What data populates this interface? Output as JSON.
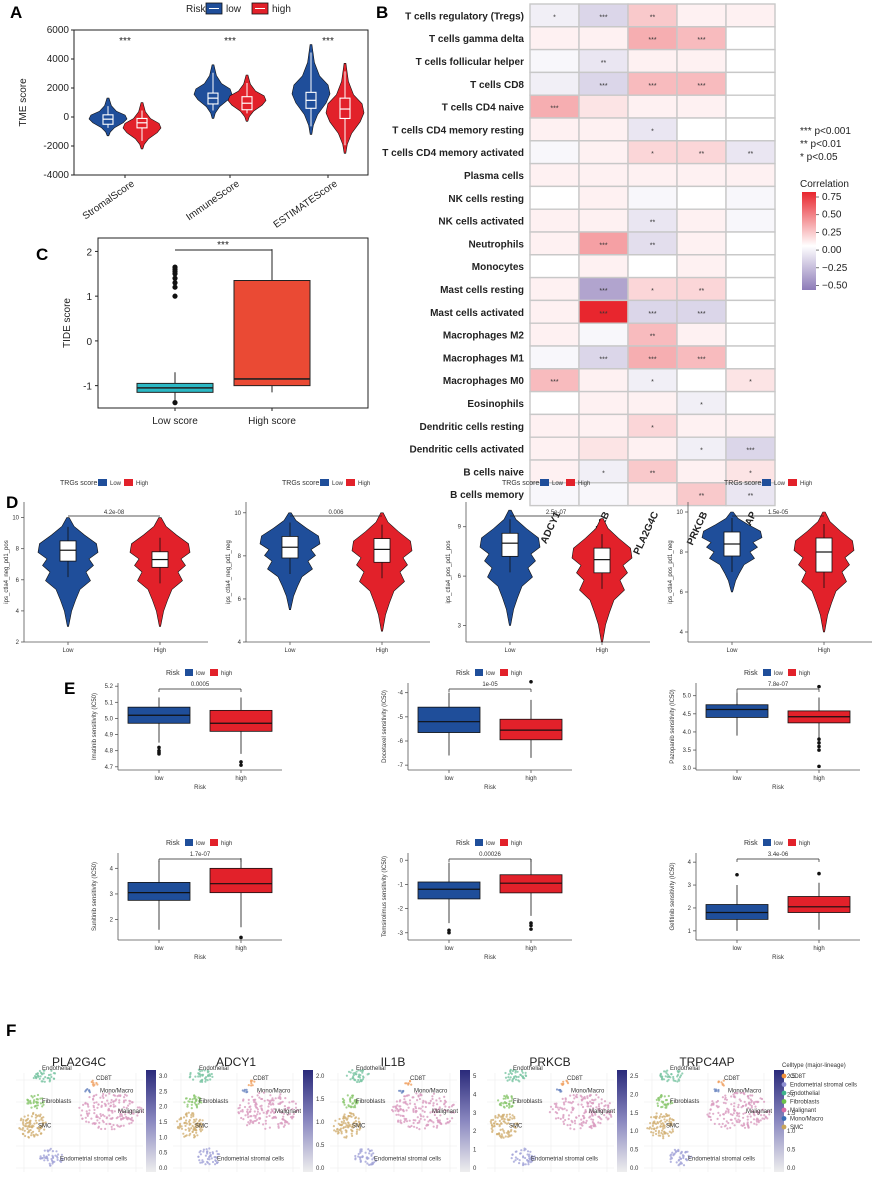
{
  "panel_labels": [
    "A",
    "B",
    "C",
    "D",
    "E",
    "F"
  ],
  "colors": {
    "low": "#1f4e9a",
    "high": "#e2212a",
    "low_light": "#2f5fb0",
    "high_light": "#ee3a3a",
    "box_cyan": "#2bb8c4",
    "box_red": "#ea4a34",
    "heat_pos": "#e8262e",
    "heat_neg": "#8d7bb8"
  },
  "chart_data": [
    {
      "id": "A",
      "type": "violin",
      "legend_title": "Risk",
      "legend": [
        "low",
        "high"
      ],
      "ylabel": "TME score",
      "ylim": [
        -4000,
        6000
      ],
      "yticks": [
        -4000,
        -2000,
        0,
        2000,
        4000,
        6000
      ],
      "categories": [
        "StromalScore",
        "ImmuneScore",
        "ESTIMATEScore"
      ],
      "significance": [
        "***",
        "***",
        "***"
      ],
      "series": [
        {
          "name": "low",
          "medians": [
            -150,
            1300,
            1150
          ],
          "q1": [
            -500,
            900,
            600
          ],
          "q3": [
            150,
            1650,
            1700
          ],
          "min": [
            -1300,
            -100,
            -1200
          ],
          "max": [
            1300,
            3600,
            5000
          ]
        },
        {
          "name": "high",
          "medians": [
            -400,
            950,
            550
          ],
          "q1": [
            -750,
            500,
            -100
          ],
          "q3": [
            -100,
            1400,
            1300
          ],
          "min": [
            -2200,
            -300,
            -2500
          ],
          "max": [
            1000,
            2900,
            3700
          ]
        }
      ]
    },
    {
      "id": "B",
      "type": "heatmap",
      "rows": [
        "T cells regulatory (Tregs)",
        "T cells gamma delta",
        "T cells follicular helper",
        "T cells CD8",
        "T cells CD4 naive",
        "T cells CD4 memory resting",
        "T cells CD4 memory activated",
        "Plasma cells",
        "NK cells resting",
        "NK cells activated",
        "Neutrophils",
        "Monocytes",
        "Mast cells resting",
        "Mast cells activated",
        "Macrophages M2",
        "Macrophages M1",
        "Macrophages M0",
        "Eosinophils",
        "Dendritic cells resting",
        "Dendritic cells activated",
        "B cells naive",
        "B cells memory"
      ],
      "columns": [
        "ADCY1",
        "IL1B",
        "PLA2G4C",
        "PRKCB",
        "TRPC4AP"
      ],
      "values": [
        [
          -0.1,
          -0.25,
          0.2,
          0.05,
          0.05
        ],
        [
          0.05,
          0.05,
          0.3,
          0.25,
          0.0
        ],
        [
          -0.05,
          -0.15,
          0.05,
          0.05,
          0.0
        ],
        [
          -0.1,
          -0.25,
          0.25,
          0.25,
          0.0
        ],
        [
          0.3,
          0.1,
          0.05,
          0.05,
          0.0
        ],
        [
          0.05,
          0.05,
          -0.15,
          0.0,
          0.0
        ],
        [
          -0.05,
          0.05,
          0.15,
          0.15,
          -0.15
        ],
        [
          0.05,
          0.05,
          0.05,
          0.05,
          0.05
        ],
        [
          0.0,
          0.05,
          -0.05,
          0.0,
          -0.05
        ],
        [
          0.05,
          0.05,
          -0.15,
          0.05,
          -0.05
        ],
        [
          0.05,
          0.35,
          -0.2,
          0.05,
          0.0
        ],
        [
          0.0,
          0.05,
          0.0,
          0.05,
          0.0
        ],
        [
          0.05,
          -0.55,
          0.15,
          0.15,
          0.0
        ],
        [
          0.05,
          0.8,
          -0.25,
          -0.25,
          0.0
        ],
        [
          0.05,
          -0.05,
          0.25,
          0.05,
          0.0
        ],
        [
          -0.05,
          -0.25,
          0.3,
          0.25,
          0.0
        ],
        [
          0.25,
          0.05,
          -0.1,
          0.0,
          0.1
        ],
        [
          0.0,
          0.05,
          0.05,
          -0.1,
          0.0
        ],
        [
          0.05,
          0.05,
          0.15,
          0.05,
          0.05
        ],
        [
          0.05,
          0.1,
          0.05,
          -0.1,
          -0.25
        ],
        [
          0.05,
          -0.1,
          0.2,
          0.05,
          0.1
        ],
        [
          -0.05,
          -0.05,
          0.05,
          0.2,
          -0.15
        ]
      ],
      "stars": [
        [
          "*",
          "***",
          "**",
          "",
          ""
        ],
        [
          "",
          "",
          "***",
          "***",
          ""
        ],
        [
          "",
          "**",
          "",
          "",
          ""
        ],
        [
          "",
          "***",
          "***",
          "***",
          ""
        ],
        [
          "***",
          "",
          "",
          "",
          ""
        ],
        [
          "",
          "",
          "*",
          "",
          ""
        ],
        [
          "",
          "",
          "*",
          "**",
          "**"
        ],
        [
          "",
          "",
          "",
          "",
          ""
        ],
        [
          "",
          "",
          "",
          "",
          ""
        ],
        [
          "",
          "",
          "**",
          "",
          ""
        ],
        [
          "",
          "***",
          "**",
          "",
          ""
        ],
        [
          "",
          "",
          "",
          "",
          ""
        ],
        [
          "",
          "***",
          "*",
          "**",
          ""
        ],
        [
          "",
          "***",
          "***",
          "***",
          ""
        ],
        [
          "",
          "",
          "**",
          "",
          ""
        ],
        [
          "",
          "***",
          "***",
          "***",
          ""
        ],
        [
          "***",
          "",
          "*",
          "",
          "*"
        ],
        [
          "",
          "",
          "",
          "*",
          ""
        ],
        [
          "",
          "",
          "*",
          "",
          ""
        ],
        [
          "",
          "",
          "",
          "*",
          "***"
        ],
        [
          "",
          "*",
          "**",
          "",
          "*"
        ],
        [
          "",
          "",
          "",
          "**",
          "**"
        ]
      ],
      "sig_legend": [
        "*** p<0.001",
        "** p<0.01",
        "* p<0.05"
      ],
      "colorbar_title": "Correlation",
      "colorbar_ticks": [
        "0.75",
        "0.50",
        "0.25",
        "0.00",
        "−0.25",
        "−0.50"
      ]
    },
    {
      "id": "C",
      "type": "box",
      "ylabel": "TIDE score",
      "yticks": [
        -1,
        0,
        1,
        2
      ],
      "categories": [
        "Low score",
        "High score"
      ],
      "significance": "***",
      "series": [
        {
          "name": "Low score",
          "min": -1.35,
          "q1": -1.15,
          "median": -1.05,
          "q3": -0.95,
          "max": -0.7,
          "outliers": [
            1.65,
            1.6,
            1.55,
            1.5,
            1.4,
            1.3,
            1.2,
            1.0,
            -1.38
          ]
        },
        {
          "name": "High score",
          "min": -1.15,
          "q1": -1.0,
          "median": -0.85,
          "q3": 1.35,
          "max": 2.05,
          "outliers": []
        }
      ]
    },
    {
      "id": "D",
      "type": "violin",
      "legend_title": "TRGs score",
      "legend": [
        "Low",
        "High"
      ],
      "categories": [
        "Low",
        "High"
      ],
      "subplots": [
        {
          "ylabel": "ips_ctla4_neg_pd1_pos",
          "pvalue": "4.2e-08",
          "yticks": [
            "2",
            "4",
            "6",
            "8",
            "10"
          ],
          "ylim": [
            2,
            11
          ],
          "low": {
            "median": 7.9,
            "q1": 7.2,
            "q3": 8.5,
            "min": 3,
            "max": 10
          },
          "high": {
            "median": 7.3,
            "q1": 6.8,
            "q3": 7.8,
            "min": 3,
            "max": 10
          }
        },
        {
          "ylabel": "ips_ctla4_neg_pd1_neg",
          "pvalue": "0.006",
          "yticks": [
            "4",
            "6",
            "8",
            "10"
          ],
          "ylim": [
            4,
            10.5
          ],
          "low": {
            "median": 8.4,
            "q1": 7.9,
            "q3": 8.9,
            "min": 5.5,
            "max": 10
          },
          "high": {
            "median": 8.3,
            "q1": 7.7,
            "q3": 8.8,
            "min": 4.5,
            "max": 10
          }
        },
        {
          "ylabel": "ips_ctla4_pos_pd1_pos",
          "pvalue": "2.5e-07",
          "yticks": [
            "3",
            "6",
            "9"
          ],
          "ylim": [
            2,
            10.5
          ],
          "low": {
            "median": 8.0,
            "q1": 7.2,
            "q3": 8.6,
            "min": 3,
            "max": 10
          },
          "high": {
            "median": 7.0,
            "q1": 6.2,
            "q3": 7.7,
            "min": 2,
            "max": 9.5
          }
        },
        {
          "ylabel": "ips_ctla4_pos_pd1_neg",
          "pvalue": "1.5e-05",
          "yticks": [
            "4",
            "6",
            "8",
            "10"
          ],
          "ylim": [
            3.5,
            10.5
          ],
          "low": {
            "median": 8.4,
            "q1": 7.8,
            "q3": 9.0,
            "min": 6,
            "max": 10
          },
          "high": {
            "median": 8.0,
            "q1": 7.0,
            "q3": 8.7,
            "min": 4,
            "max": 10
          }
        }
      ]
    },
    {
      "id": "E",
      "type": "box",
      "legend_title": "Risk",
      "legend": [
        "low",
        "high"
      ],
      "xlabel": "Risk",
      "categories": [
        "low",
        "high"
      ],
      "subplots": [
        {
          "ylabel": "Imatinib sensitivity (IC50)",
          "pvalue": "0.0005",
          "yticks": [
            "4.7",
            "4.8",
            "4.9",
            "5.0",
            "5.1",
            "5.2"
          ],
          "ylim": [
            4.68,
            5.22
          ],
          "low": {
            "min": 4.85,
            "q1": 4.97,
            "median": 5.02,
            "q3": 5.07,
            "max": 5.13,
            "outliers": [
              4.82,
              4.8,
              4.79,
              4.78
            ]
          },
          "high": {
            "min": 4.78,
            "q1": 4.92,
            "median": 4.97,
            "q3": 5.05,
            "max": 5.13,
            "outliers": [
              4.73,
              4.71
            ]
          }
        },
        {
          "ylabel": "Docetaxel sensitivity (IC50)",
          "pvalue": "1e-05",
          "yticks": [
            "-7",
            "-6",
            "-5",
            "-4"
          ],
          "ylim": [
            -7.2,
            -3.6
          ],
          "low": {
            "min": -6.6,
            "q1": -5.65,
            "median": -5.2,
            "q3": -4.6,
            "max": -4.0,
            "outliers": []
          },
          "high": {
            "min": -6.7,
            "q1": -5.95,
            "median": -5.55,
            "q3": -5.1,
            "max": -4.3,
            "outliers": [
              -3.55
            ]
          }
        },
        {
          "ylabel": "Pazopanib sensitivity (IC50)",
          "pvalue": "7.8e-07",
          "yticks": [
            "3.0",
            "3.5",
            "4.0",
            "4.5",
            "5.0"
          ],
          "ylim": [
            2.95,
            5.35
          ],
          "low": {
            "min": 3.9,
            "q1": 4.4,
            "median": 4.62,
            "q3": 4.75,
            "max": 5.1,
            "outliers": []
          },
          "high": {
            "min": 3.8,
            "q1": 4.25,
            "median": 4.42,
            "q3": 4.58,
            "max": 4.95,
            "outliers": [
              5.25,
              3.8,
              3.7,
              3.6,
              3.5,
              3.05
            ]
          }
        },
        {
          "ylabel": "Sunitinib sensitivity (IC50)",
          "pvalue": "1.7e-07",
          "yticks": [
            "2",
            "3",
            "4"
          ],
          "ylim": [
            1.2,
            4.6
          ],
          "low": {
            "min": 1.6,
            "q1": 2.75,
            "median": 3.05,
            "q3": 3.45,
            "max": 4.3,
            "outliers": []
          },
          "high": {
            "min": 1.7,
            "q1": 3.05,
            "median": 3.4,
            "q3": 4.0,
            "max": 4.4,
            "outliers": [
              1.3
            ]
          }
        },
        {
          "ylabel": "Temsirolimus sensitivity (IC50)",
          "pvalue": "0.00026",
          "yticks": [
            "-3",
            "-2",
            "-1",
            "0"
          ],
          "ylim": [
            -3.3,
            0.3
          ],
          "low": {
            "min": -2.6,
            "q1": -1.6,
            "median": -1.2,
            "q3": -0.9,
            "max": -0.1,
            "outliers": [
              -2.9,
              -3.0
            ]
          },
          "high": {
            "min": -2.3,
            "q1": -1.35,
            "median": -0.95,
            "q3": -0.6,
            "max": 0.05,
            "outliers": [
              -2.6,
              -2.7,
              -2.85
            ]
          }
        },
        {
          "ylabel": "Gefitinib sensitivity (IC50)",
          "pvalue": "3.4e-06",
          "yticks": [
            "1",
            "2",
            "3",
            "4"
          ],
          "ylim": [
            0.6,
            4.4
          ],
          "low": {
            "min": 1.0,
            "q1": 1.5,
            "median": 1.8,
            "q3": 2.15,
            "max": 3.0,
            "outliers": [
              3.45
            ]
          },
          "high": {
            "min": 1.05,
            "q1": 1.8,
            "median": 2.05,
            "q3": 2.5,
            "max": 3.1,
            "outliers": [
              3.5
            ]
          }
        }
      ]
    },
    {
      "id": "F",
      "type": "scatter-umap",
      "genes": [
        "PLA2G4C",
        "ADCY1",
        "IL1B",
        "PRKCB",
        "TRPC4AP"
      ],
      "cluster_labels": [
        "Endothelial",
        "CD8T",
        "Mono/Macro",
        "Fibroblasts",
        "SMC",
        "Malignant",
        "Endometrial stromal cells"
      ],
      "colorbar_ticks": [
        [
          "3.0",
          "2.5",
          "2.0",
          "1.5",
          "1.0",
          "0.5",
          "0.0"
        ],
        [
          "2.0",
          "1.5",
          "1.0",
          "0.5",
          "0.0"
        ],
        [
          "5",
          "4",
          "3",
          "2",
          "1",
          "0"
        ],
        [
          "2.5",
          "2.0",
          "1.5",
          "1.0",
          "0.5",
          "0.0"
        ],
        [
          "2.5",
          "2.0",
          "1.5",
          "1.0",
          "0.5",
          "0.0"
        ]
      ],
      "legend_title": "Celltype (major-lineage)",
      "legend": [
        {
          "name": "CD8T",
          "color": "#f0903a"
        },
        {
          "name": "Endometrial stromal cells",
          "color": "#8e8fd2"
        },
        {
          "name": "Endothelial",
          "color": "#3fb38c"
        },
        {
          "name": "Fibroblasts",
          "color": "#6ec24a"
        },
        {
          "name": "Malignant",
          "color": "#d96ca6"
        },
        {
          "name": "Mono/Macro",
          "color": "#3a6fb5"
        },
        {
          "name": "SMC",
          "color": "#c9a55a"
        }
      ]
    }
  ]
}
